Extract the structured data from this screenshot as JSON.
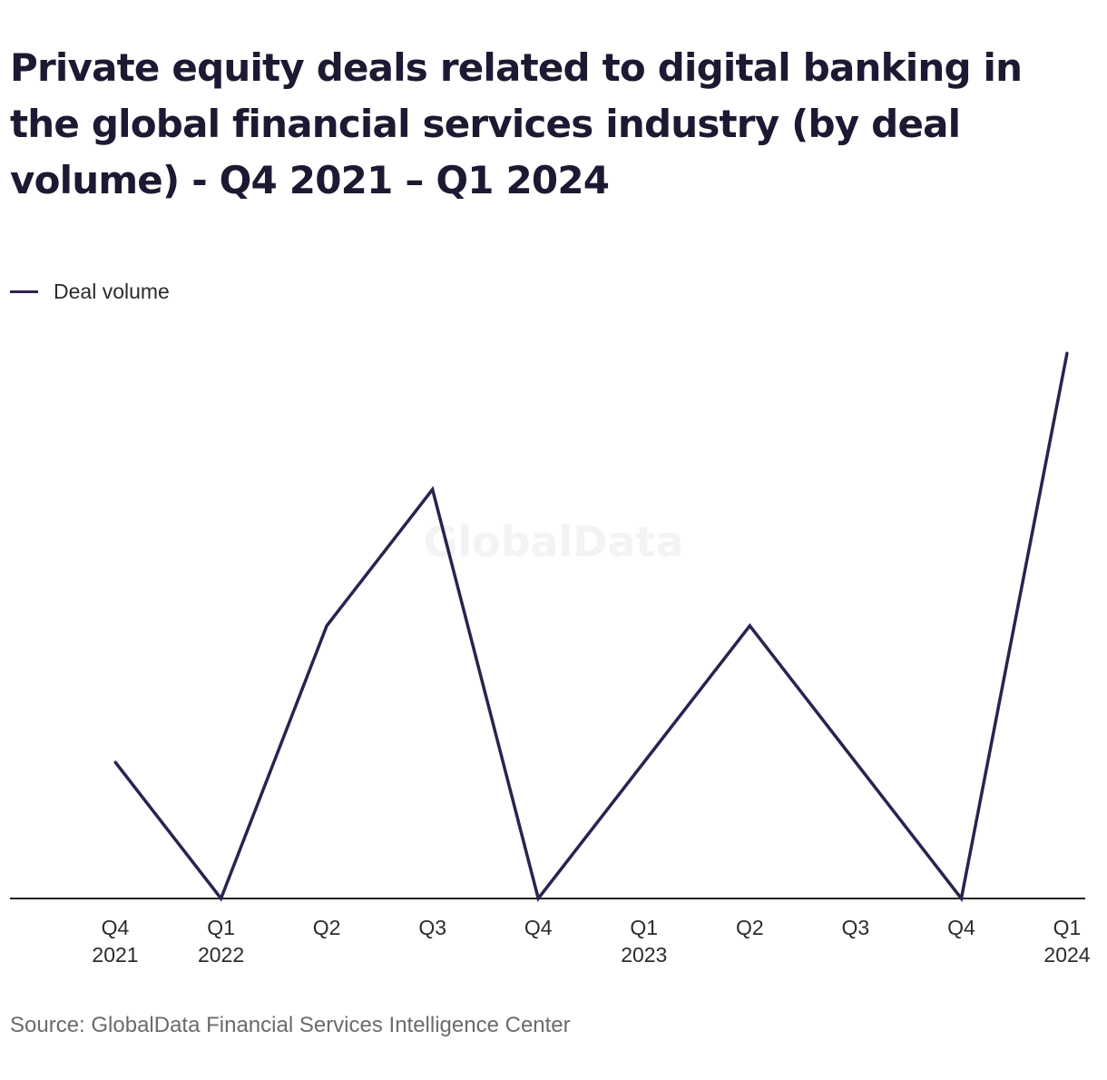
{
  "chart_data": {
    "type": "line",
    "title": "Private equity deals related to digital banking in the global financial services industry (by deal volume) - Q4 2021 – Q1 2024",
    "categories": [
      [
        "Q4",
        "2021"
      ],
      [
        "Q1",
        "2022"
      ],
      [
        "Q2"
      ],
      [
        "Q3"
      ],
      [
        "Q4"
      ],
      [
        "Q1",
        "2023"
      ],
      [
        "Q2"
      ],
      [
        "Q3"
      ],
      [
        "Q4"
      ],
      [
        "Q1",
        "2024"
      ]
    ],
    "series": [
      {
        "name": "Deal volume",
        "values": [
          1,
          0,
          2,
          3,
          0,
          1,
          2,
          1,
          0,
          4
        ]
      }
    ],
    "ylim": [
      0,
      4
    ],
    "xlabel": "",
    "ylabel": "",
    "grid": false,
    "legend_position": "top-left",
    "watermark": "GlobalData",
    "line_color": "#2e2150"
  },
  "source": "Source: GlobalData Financial Services Intelligence Center"
}
